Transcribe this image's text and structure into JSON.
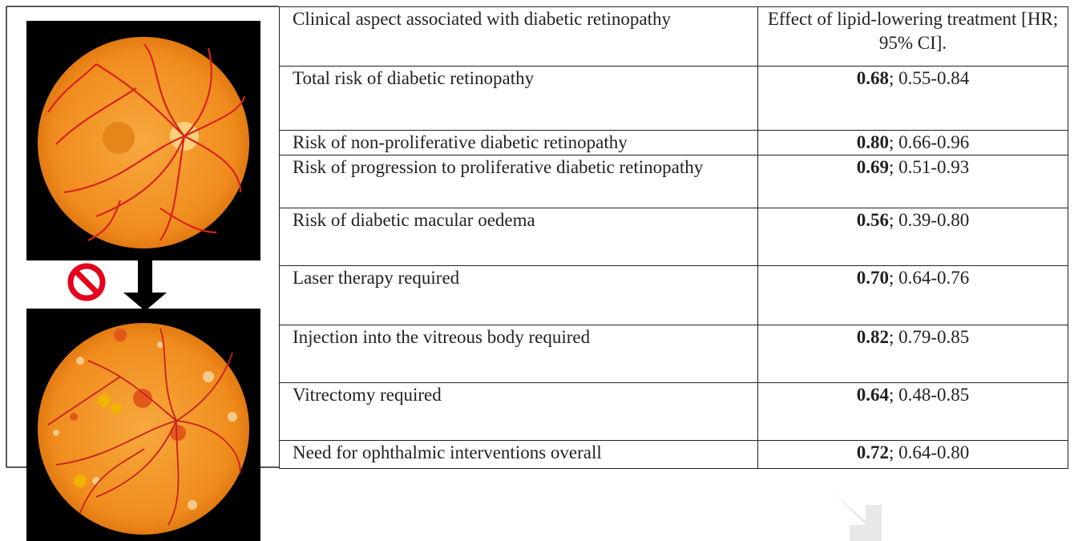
{
  "table": {
    "header": [
      "Clinical aspect associated with diabetic retinopathy",
      "Effect of lipid-lowering treatment [HR; 95% CI]."
    ],
    "rows": [
      {
        "aspect": "Total risk of diabetic retinopathy",
        "hr": "0.68",
        "ci": "; 0.55-0.84"
      },
      {
        "aspect": "Risk of non-proliferative diabetic retinopathy",
        "hr": "0.80",
        "ci": "; 0.66-0.96"
      },
      {
        "aspect": "Risk of progression to proliferative diabetic retinopathy",
        "hr": "0.69",
        "ci": "; 0.51-0.93"
      },
      {
        "aspect": "Risk of diabetic macular oedema",
        "hr": "0.56",
        "ci": "; 0.39-0.80"
      },
      {
        "aspect": "Laser therapy required",
        "hr": "0.70",
        "ci": "; 0.64-0.76"
      },
      {
        "aspect": "Injection into the vitreous body required",
        "hr": "0.82",
        "ci": "; 0.79-0.85"
      },
      {
        "aspect": "Vitrectomy required",
        "hr": "0.64",
        "ci": "; 0.48-0.85"
      },
      {
        "aspect": "Need for ophthalmic interventions overall",
        "hr": "0.72",
        "ci": "; 0.64-0.80"
      }
    ]
  }
}
